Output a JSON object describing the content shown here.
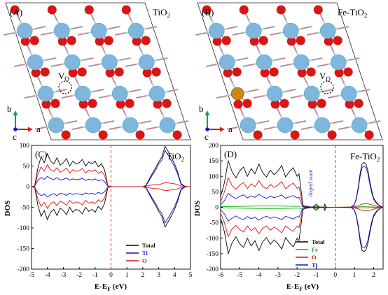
{
  "panels": {
    "A": {
      "letter": "(A)",
      "material": "TiO",
      "material_sub": "2",
      "vacancy": "V",
      "vacancy_sub": "O"
    },
    "B": {
      "letter": "(B)",
      "material": "Fe-TiO",
      "material_sub": "2",
      "vacancy": "V",
      "vacancy_sub": "O"
    },
    "axes_labels": {
      "b": "b",
      "a": "a",
      "c": "c"
    }
  },
  "colors": {
    "ti_atom": "#7fb6dc",
    "o_atom": "#d81616",
    "fe_atom": "#c88a14",
    "bond_ti": "#a8cde8",
    "bond_o": "#e07070",
    "fermi": "#d83030"
  },
  "chart_data": [
    {
      "type": "line",
      "panel": "(C)",
      "title": "TiO",
      "title_sub": "2",
      "xlabel": "E-E",
      "xlabel_sub": "F",
      "xlabel_unit": " (eV)",
      "ylabel": "DOS",
      "xlim": [
        -5,
        5
      ],
      "ylim": [
        -200,
        100
      ],
      "xticks": [
        -5,
        -4,
        -3,
        -2,
        -1,
        0,
        1,
        2,
        3,
        4,
        5
      ],
      "yticks": [
        -200,
        -150,
        -100,
        -50,
        0,
        50,
        100
      ],
      "fermi_level": 0,
      "legend": "lower-right",
      "series": [
        {
          "name": "Total",
          "color": "#000000",
          "x": [
            -5,
            -4.8,
            -4.6,
            -4.4,
            -4.2,
            -4.0,
            -3.8,
            -3.6,
            -3.4,
            -3.2,
            -3.0,
            -2.8,
            -2.6,
            -2.4,
            -2.2,
            -2.0,
            -1.8,
            -1.6,
            -1.4,
            -1.2,
            -1.0,
            -0.8,
            -0.6,
            -0.4,
            -0.2,
            0,
            1.0,
            2.0,
            2.2,
            2.4,
            2.6,
            2.8,
            3.0,
            3.2,
            3.4,
            3.6,
            3.8,
            4.0,
            4.2,
            4.4,
            4.6,
            4.8,
            5.0
          ],
          "y_up": [
            0,
            2,
            45,
            72,
            58,
            80,
            62,
            55,
            70,
            52,
            58,
            68,
            50,
            62,
            55,
            58,
            66,
            50,
            60,
            55,
            62,
            48,
            56,
            40,
            2,
            0,
            0,
            0,
            3,
            18,
            32,
            45,
            60,
            72,
            98,
            85,
            70,
            55,
            35,
            8,
            2,
            0,
            0
          ],
          "y_dn": [
            0,
            -2,
            -45,
            -72,
            -58,
            -80,
            -62,
            -55,
            -70,
            -52,
            -58,
            -68,
            -50,
            -62,
            -55,
            -58,
            -66,
            -50,
            -60,
            -55,
            -62,
            -48,
            -56,
            -40,
            -2,
            0,
            0,
            0,
            -3,
            -18,
            -32,
            -45,
            -60,
            -72,
            -98,
            -85,
            -70,
            -55,
            -35,
            -8,
            -2,
            0,
            0
          ]
        },
        {
          "name": "Ti",
          "color": "#1010e0",
          "x": [
            -5,
            -4.8,
            -4.6,
            -4.4,
            -4.2,
            -4.0,
            -3.8,
            -3.6,
            -3.4,
            -3.2,
            -3.0,
            -2.8,
            -2.6,
            -2.4,
            -2.2,
            -2.0,
            -1.8,
            -1.6,
            -1.4,
            -1.2,
            -1.0,
            -0.8,
            -0.6,
            -0.4,
            -0.2,
            0,
            1.0,
            2.0,
            2.2,
            2.4,
            2.6,
            2.8,
            3.0,
            3.2,
            3.4,
            3.6,
            3.8,
            4.0,
            4.2,
            4.4,
            4.6,
            4.8,
            5.0
          ],
          "y_up": [
            0,
            1,
            15,
            22,
            18,
            25,
            20,
            17,
            22,
            16,
            18,
            21,
            16,
            19,
            17,
            18,
            20,
            15,
            18,
            16,
            19,
            14,
            17,
            12,
            1,
            0,
            0,
            0,
            2,
            15,
            28,
            40,
            55,
            65,
            88,
            76,
            62,
            48,
            30,
            6,
            1,
            0,
            0
          ],
          "y_dn": [
            0,
            -1,
            -15,
            -22,
            -18,
            -25,
            -20,
            -17,
            -22,
            -16,
            -18,
            -21,
            -16,
            -19,
            -17,
            -18,
            -20,
            -15,
            -18,
            -16,
            -19,
            -14,
            -17,
            -12,
            -1,
            0,
            0,
            0,
            -2,
            -15,
            -28,
            -40,
            -55,
            -65,
            -88,
            -76,
            -62,
            -48,
            -30,
            -6,
            -1,
            0,
            0
          ]
        },
        {
          "name": "O",
          "color": "#e01010",
          "x": [
            -5,
            -4.8,
            -4.6,
            -4.4,
            -4.2,
            -4.0,
            -3.8,
            -3.6,
            -3.4,
            -3.2,
            -3.0,
            -2.8,
            -2.6,
            -2.4,
            -2.2,
            -2.0,
            -1.8,
            -1.6,
            -1.4,
            -1.2,
            -1.0,
            -0.8,
            -0.6,
            -0.4,
            -0.2,
            0,
            1.0,
            2.0,
            2.2,
            2.4,
            2.6,
            2.8,
            3.0,
            3.2,
            3.4,
            3.6,
            3.8,
            4.0,
            4.2,
            4.4,
            4.6,
            4.8,
            5.0
          ],
          "y_up": [
            0,
            1,
            30,
            48,
            38,
            53,
            41,
            37,
            46,
            35,
            39,
            45,
            33,
            41,
            37,
            39,
            44,
            33,
            40,
            37,
            41,
            32,
            37,
            27,
            1,
            0,
            0,
            0,
            1,
            3,
            4,
            5,
            5,
            7,
            10,
            9,
            8,
            7,
            5,
            2,
            1,
            0,
            0
          ],
          "y_dn": [
            0,
            -1,
            -30,
            -48,
            -38,
            -53,
            -41,
            -37,
            -46,
            -35,
            -39,
            -45,
            -33,
            -41,
            -37,
            -39,
            -44,
            -33,
            -40,
            -37,
            -41,
            -32,
            -37,
            -27,
            -1,
            0,
            0,
            0,
            -1,
            -3,
            -4,
            -5,
            -5,
            -7,
            -10,
            -9,
            -8,
            -7,
            -5,
            -2,
            -1,
            0,
            0
          ]
        }
      ]
    },
    {
      "type": "line",
      "panel": "(D)",
      "title": "Fe-TiO",
      "title_sub": "2",
      "xlabel": "E-E",
      "xlabel_sub": "F",
      "xlabel_unit": " (eV)",
      "ylabel": "DOS",
      "xlim": [
        -6,
        2.5
      ],
      "ylim": [
        -200,
        200
      ],
      "xticks": [
        -6,
        -5,
        -4,
        -3,
        -2,
        -1,
        0,
        1,
        2
      ],
      "yticks": [
        -200,
        -150,
        -100,
        -50,
        0,
        50,
        100,
        150,
        200
      ],
      "fermi_level": 0,
      "annotation": "doped state",
      "legend": "lower-left",
      "series": [
        {
          "name": "Total",
          "color": "#000000",
          "x": [
            -6,
            -5.8,
            -5.6,
            -5.4,
            -5.2,
            -5.0,
            -4.8,
            -4.6,
            -4.4,
            -4.2,
            -4.0,
            -3.8,
            -3.6,
            -3.4,
            -3.2,
            -3.0,
            -2.8,
            -2.6,
            -2.4,
            -2.2,
            -2.0,
            -1.9,
            -1.8,
            -1.7,
            -1.6,
            -1.4,
            -1.2,
            -1.1,
            -1.0,
            -0.9,
            -0.8,
            -0.6,
            -0.55,
            -0.5,
            -0.4,
            -0.2,
            0,
            0.5,
            0.8,
            0.9,
            1.0,
            1.1,
            1.2,
            1.3,
            1.4,
            1.5,
            1.6,
            1.7,
            1.8,
            1.9,
            2.0,
            2.1,
            2.2,
            2.3,
            2.4,
            2.5
          ],
          "y_up": [
            35,
            80,
            150,
            115,
            95,
            118,
            130,
            100,
            125,
            108,
            140,
            112,
            98,
            120,
            105,
            118,
            135,
            98,
            115,
            128,
            100,
            108,
            60,
            8,
            4,
            2,
            1,
            4,
            10,
            4,
            1,
            1,
            10,
            2,
            0,
            0,
            0,
            0,
            0,
            4,
            10,
            30,
            65,
            110,
            140,
            145,
            140,
            120,
            85,
            55,
            30,
            20,
            12,
            6,
            2,
            0
          ],
          "y_dn": [
            -35,
            -80,
            -150,
            -115,
            -95,
            -118,
            -130,
            -100,
            -125,
            -108,
            -140,
            -112,
            -98,
            -120,
            -105,
            -118,
            -135,
            -98,
            -115,
            -128,
            -100,
            -108,
            -60,
            -8,
            -4,
            -2,
            -1,
            -4,
            -10,
            -4,
            -1,
            -1,
            -10,
            -2,
            0,
            0,
            0,
            0,
            0,
            -4,
            -10,
            -30,
            -65,
            -110,
            -140,
            -143,
            -138,
            -118,
            -85,
            -55,
            -30,
            -20,
            -12,
            -6,
            -2,
            0
          ]
        },
        {
          "name": "Fe",
          "color": "#10b010",
          "x": [
            -6,
            -5.0,
            -4.0,
            -3.0,
            -2.0,
            -1.9,
            -1.8,
            -1.7,
            -1.6,
            -1.4,
            -1.2,
            -1.1,
            -1.0,
            -0.9,
            -0.8,
            -0.6,
            -0.55,
            -0.5,
            -0.4,
            0,
            1.0,
            1.5,
            2.0,
            2.5
          ],
          "y_up": [
            2,
            3,
            4,
            4,
            3,
            3,
            4,
            3,
            2,
            1,
            1,
            2,
            4,
            2,
            1,
            1,
            5,
            1,
            0,
            0,
            1,
            2,
            1,
            0
          ],
          "y_dn": [
            -2,
            -3,
            -4,
            -4,
            -3,
            -3,
            -4,
            -3,
            -2,
            -1,
            -1,
            -2,
            -4,
            -2,
            -1,
            -1,
            -5,
            -1,
            0,
            0,
            -1,
            -2,
            -1,
            0
          ]
        },
        {
          "name": "O",
          "color": "#e01010",
          "x": [
            -6,
            -5.8,
            -5.6,
            -5.4,
            -5.2,
            -5.0,
            -4.8,
            -4.6,
            -4.4,
            -4.2,
            -4.0,
            -3.8,
            -3.6,
            -3.4,
            -3.2,
            -3.0,
            -2.8,
            -2.6,
            -2.4,
            -2.2,
            -2.0,
            -1.9,
            -1.8,
            -1.7,
            -1.6,
            -0.5,
            0,
            0.9,
            1.2,
            1.4,
            1.6,
            1.8,
            2.0,
            2.2,
            2.5
          ],
          "y_up": [
            18,
            50,
            95,
            70,
            58,
            72,
            80,
            60,
            76,
            66,
            86,
            68,
            60,
            74,
            64,
            72,
            83,
            60,
            70,
            78,
            61,
            66,
            36,
            4,
            1,
            0,
            0,
            1,
            5,
            10,
            12,
            10,
            6,
            3,
            0
          ],
          "y_dn": [
            -18,
            -50,
            -95,
            -70,
            -58,
            -72,
            -80,
            -60,
            -76,
            -66,
            -86,
            -68,
            -60,
            -74,
            -64,
            -72,
            -83,
            -60,
            -70,
            -78,
            -61,
            -66,
            -36,
            -4,
            -1,
            0,
            0,
            -1,
            -5,
            -10,
            -12,
            -10,
            -6,
            -3,
            0
          ]
        },
        {
          "name": "Ti",
          "color": "#1010e0",
          "x": [
            -6,
            -5.8,
            -5.6,
            -5.4,
            -5.2,
            -5.0,
            -4.8,
            -4.6,
            -4.4,
            -4.2,
            -4.0,
            -3.8,
            -3.6,
            -3.4,
            -3.2,
            -3.0,
            -2.8,
            -2.6,
            -2.4,
            -2.2,
            -2.0,
            -1.9,
            -1.8,
            -1.7,
            -1.6,
            -0.5,
            0,
            0.8,
            0.9,
            1.0,
            1.1,
            1.2,
            1.3,
            1.4,
            1.5,
            1.6,
            1.7,
            1.8,
            1.9,
            2.0,
            2.1,
            2.2,
            2.3,
            2.4,
            2.5
          ],
          "y_up": [
            8,
            22,
            45,
            35,
            28,
            36,
            40,
            30,
            37,
            32,
            42,
            34,
            29,
            36,
            31,
            35,
            40,
            29,
            34,
            38,
            30,
            32,
            18,
            2,
            1,
            0,
            0,
            0,
            3,
            9,
            27,
            58,
            100,
            128,
            133,
            128,
            110,
            76,
            48,
            26,
            17,
            10,
            5,
            2,
            0
          ],
          "y_dn": [
            -8,
            -22,
            -45,
            -35,
            -28,
            -36,
            -40,
            -30,
            -37,
            -32,
            -42,
            -34,
            -29,
            -36,
            -31,
            -35,
            -40,
            -29,
            -34,
            -38,
            -30,
            -32,
            -18,
            -2,
            -1,
            0,
            0,
            0,
            -3,
            -9,
            -27,
            -58,
            -100,
            -128,
            -131,
            -126,
            -108,
            -76,
            -48,
            -26,
            -17,
            -10,
            -5,
            -2,
            0
          ]
        }
      ]
    }
  ]
}
